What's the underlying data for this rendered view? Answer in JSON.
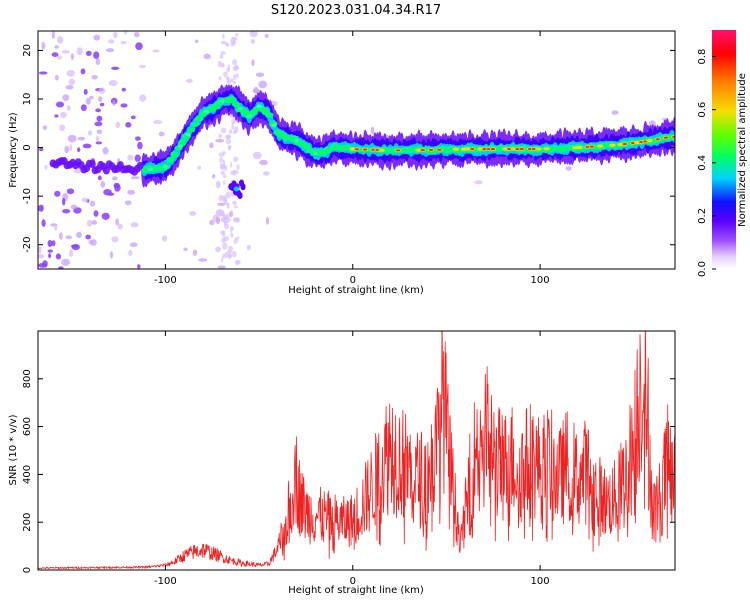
{
  "figure": {
    "title": "S120.2023.031.04.34.R17"
  },
  "chart_data": [
    {
      "type": "heatmap",
      "xlabel": "Height of straight line (km)",
      "ylabel": "Frequency (Hz)",
      "xlim": [
        -168,
        172
      ],
      "ylim": [
        -25,
        24
      ],
      "xticks": [
        -100,
        0,
        100
      ],
      "yticks": [
        -20,
        -10,
        0,
        10,
        20
      ],
      "colorbar": {
        "label": "Normalized spectral amplitude",
        "range": [
          0,
          0.9
        ],
        "ticks": [
          0.0,
          0.2,
          0.4,
          0.6,
          0.8
        ],
        "colormap": [
          "#ffffff",
          "#e8d0ff",
          "#9d4dff",
          "#5a00ff",
          "#1010ff",
          "#00d5ff",
          "#00ff60",
          "#60ff00",
          "#f5e000",
          "#ff8000",
          "#ff0000",
          "#ff1070"
        ]
      },
      "ridge_frequency": [
        {
          "x": -160,
          "y": -3.0
        },
        {
          "x": -150,
          "y": -3.6
        },
        {
          "x": -140,
          "y": -4.0
        },
        {
          "x": -130,
          "y": -4.0
        },
        {
          "x": -120,
          "y": -4.2
        },
        {
          "x": -110,
          "y": -4.6
        },
        {
          "x": -100,
          "y": -4.0
        },
        {
          "x": -95,
          "y": -1.5
        },
        {
          "x": -90,
          "y": 1.5
        },
        {
          "x": -85,
          "y": 4.5
        },
        {
          "x": -80,
          "y": 7.0
        },
        {
          "x": -75,
          "y": 8.0
        },
        {
          "x": -70,
          "y": 9.5
        },
        {
          "x": -65,
          "y": 10.0
        },
        {
          "x": -60,
          "y": 8.0
        },
        {
          "x": -55,
          "y": 6.5
        },
        {
          "x": -50,
          "y": 8.5
        },
        {
          "x": -45,
          "y": 7.0
        },
        {
          "x": -40,
          "y": 3.0
        },
        {
          "x": -35,
          "y": 2.0
        },
        {
          "x": -30,
          "y": 1.5
        },
        {
          "x": -25,
          "y": 0.2
        },
        {
          "x": -20,
          "y": -1.2
        },
        {
          "x": -15,
          "y": -1.0
        },
        {
          "x": -10,
          "y": 0.2
        },
        {
          "x": 0,
          "y": -0.3
        },
        {
          "x": 20,
          "y": -0.6
        },
        {
          "x": 40,
          "y": -0.5
        },
        {
          "x": 60,
          "y": -0.3
        },
        {
          "x": 80,
          "y": -0.3
        },
        {
          "x": 100,
          "y": -0.3
        },
        {
          "x": 120,
          "y": 0.0
        },
        {
          "x": 140,
          "y": 0.5
        },
        {
          "x": 155,
          "y": 1.2
        },
        {
          "x": 170,
          "y": 2.2
        }
      ],
      "side_lobe": {
        "x_range": [
          -65,
          -58
        ],
        "y_center": -8.5
      }
    },
    {
      "type": "line",
      "xlabel": "Height of straight line (km)",
      "ylabel": "SNR (10 * v/v)",
      "xlim": [
        -168,
        172
      ],
      "ylim": [
        0,
        1000
      ],
      "xticks": [
        -100,
        0,
        100
      ],
      "yticks": [
        0,
        200,
        400,
        600,
        800
      ],
      "color": "#ee2222",
      "envelope": [
        {
          "x": -168,
          "y": 8
        },
        {
          "x": -140,
          "y": 10
        },
        {
          "x": -110,
          "y": 12
        },
        {
          "x": -100,
          "y": 20
        },
        {
          "x": -95,
          "y": 35
        },
        {
          "x": -90,
          "y": 60
        },
        {
          "x": -85,
          "y": 75
        },
        {
          "x": -80,
          "y": 85
        },
        {
          "x": -75,
          "y": 70
        },
        {
          "x": -70,
          "y": 55
        },
        {
          "x": -65,
          "y": 40
        },
        {
          "x": -60,
          "y": 30
        },
        {
          "x": -55,
          "y": 25
        },
        {
          "x": -50,
          "y": 20
        },
        {
          "x": -45,
          "y": 25
        },
        {
          "x": -40,
          "y": 90
        },
        {
          "x": -35,
          "y": 200
        },
        {
          "x": -31,
          "y": 420
        },
        {
          "x": -28,
          "y": 300
        },
        {
          "x": -25,
          "y": 240
        },
        {
          "x": -20,
          "y": 230
        },
        {
          "x": -15,
          "y": 220
        },
        {
          "x": -10,
          "y": 210
        },
        {
          "x": -5,
          "y": 200
        },
        {
          "x": 0,
          "y": 210
        },
        {
          "x": 5,
          "y": 270
        },
        {
          "x": 10,
          "y": 340
        },
        {
          "x": 15,
          "y": 420
        },
        {
          "x": 20,
          "y": 520
        },
        {
          "x": 25,
          "y": 460
        },
        {
          "x": 30,
          "y": 420
        },
        {
          "x": 35,
          "y": 380
        },
        {
          "x": 40,
          "y": 390
        },
        {
          "x": 45,
          "y": 500
        },
        {
          "x": 48,
          "y": 760
        },
        {
          "x": 51,
          "y": 500
        },
        {
          "x": 55,
          "y": 250
        },
        {
          "x": 58,
          "y": 120
        },
        {
          "x": 62,
          "y": 350
        },
        {
          "x": 66,
          "y": 520
        },
        {
          "x": 70,
          "y": 600
        },
        {
          "x": 75,
          "y": 480
        },
        {
          "x": 80,
          "y": 430
        },
        {
          "x": 85,
          "y": 460
        },
        {
          "x": 90,
          "y": 420
        },
        {
          "x": 95,
          "y": 470
        },
        {
          "x": 100,
          "y": 420
        },
        {
          "x": 105,
          "y": 450
        },
        {
          "x": 110,
          "y": 380
        },
        {
          "x": 115,
          "y": 450
        },
        {
          "x": 120,
          "y": 380
        },
        {
          "x": 125,
          "y": 420
        },
        {
          "x": 130,
          "y": 330
        },
        {
          "x": 135,
          "y": 280
        },
        {
          "x": 140,
          "y": 300
        },
        {
          "x": 145,
          "y": 380
        },
        {
          "x": 150,
          "y": 520
        },
        {
          "x": 154,
          "y": 820
        },
        {
          "x": 157,
          "y": 700
        },
        {
          "x": 160,
          "y": 250
        },
        {
          "x": 164,
          "y": 300
        },
        {
          "x": 168,
          "y": 450
        },
        {
          "x": 172,
          "y": 380
        }
      ]
    }
  ]
}
